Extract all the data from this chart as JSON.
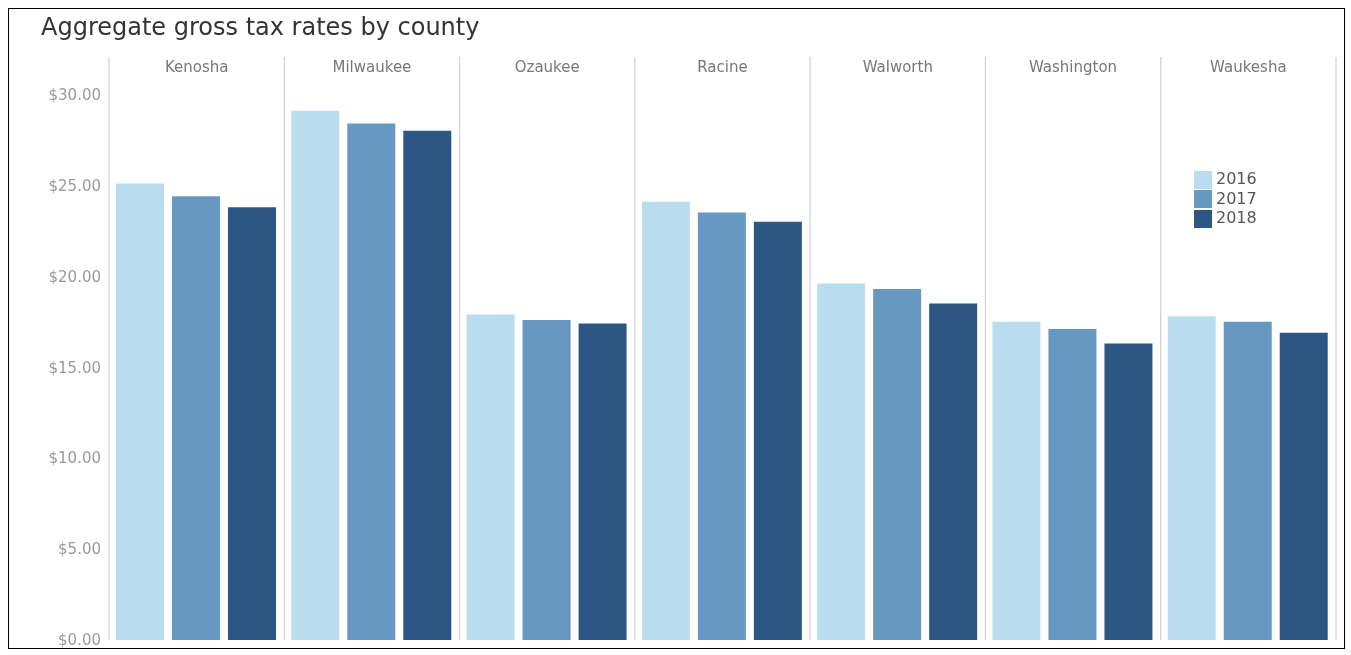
{
  "chart_data": {
    "type": "bar",
    "title": "Aggregate gross tax rates by county",
    "categories": [
      "Kenosha",
      "Milwaukee",
      "Ozaukee",
      "Racine",
      "Walworth",
      "Washington",
      "Waukesha"
    ],
    "series": [
      {
        "name": "2016",
        "color": "#b9dcef",
        "values": [
          25.1,
          29.1,
          17.9,
          24.1,
          19.6,
          17.5,
          17.8
        ]
      },
      {
        "name": "2017",
        "color": "#6798c1",
        "values": [
          24.4,
          28.4,
          17.6,
          23.5,
          19.3,
          17.1,
          17.5
        ]
      },
      {
        "name": "2018",
        "color": "#2c5784",
        "values": [
          23.8,
          28.0,
          17.4,
          23.0,
          18.5,
          16.3,
          16.9
        ]
      }
    ],
    "ylim": [
      0,
      32
    ],
    "yticks": [
      {
        "value": 0,
        "label": "$0.00"
      },
      {
        "value": 5,
        "label": "$5.00"
      },
      {
        "value": 10,
        "label": "$10.00"
      },
      {
        "value": 15,
        "label": "$15.00"
      },
      {
        "value": 20,
        "label": "$20.00"
      },
      {
        "value": 25,
        "label": "$25.00"
      },
      {
        "value": 30,
        "label": "$30.00"
      }
    ],
    "grid": "x",
    "legend": "top right"
  }
}
